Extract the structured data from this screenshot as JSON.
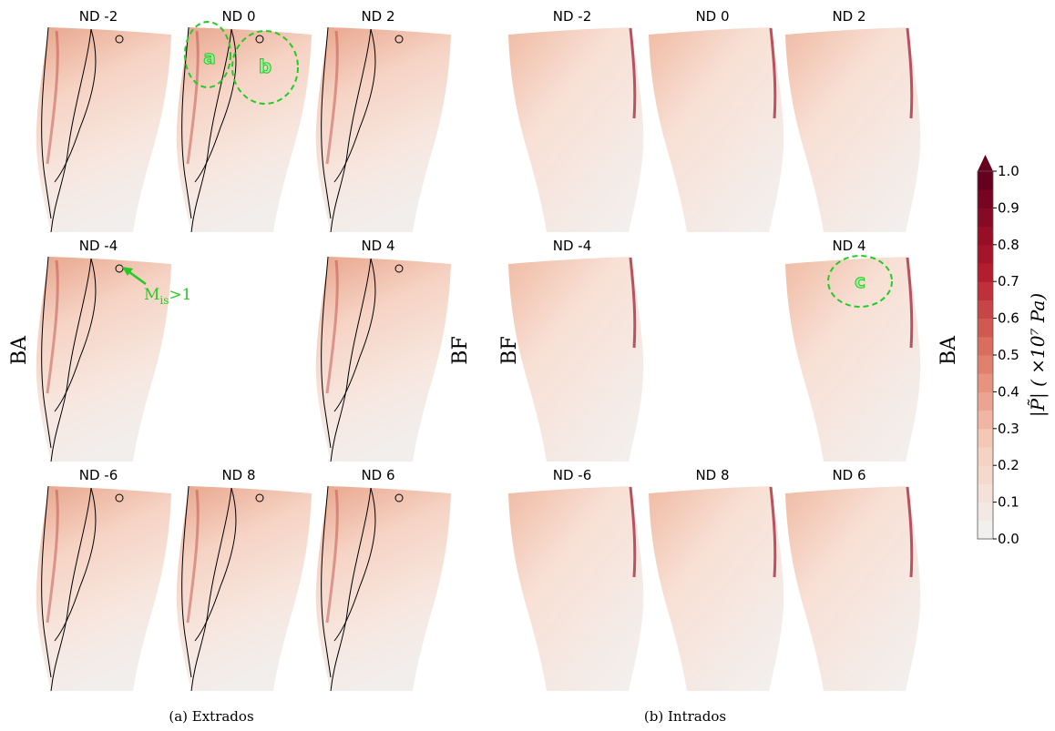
{
  "extrados": {
    "panels": [
      "ND -2",
      "ND 0",
      "ND 2",
      "ND -4",
      "ND 4",
      "ND -6",
      "ND 8",
      "ND 6"
    ],
    "caption": "(a) Extrados"
  },
  "intrados": {
    "panels": [
      "ND -2",
      "ND 0",
      "ND 2",
      "ND -4",
      "ND 4",
      "ND -6",
      "ND 8",
      "ND 6"
    ],
    "caption": "(b) Intrados"
  },
  "side_labels": [
    "BA",
    "BF",
    "BF",
    "BA"
  ],
  "annotations": {
    "regions": [
      "a",
      "b",
      "c"
    ],
    "mach": "M",
    "mach_sub": "is",
    "mach_rest": ">1"
  },
  "colorbar": {
    "ticks": [
      "0.0",
      "0.1",
      "0.2",
      "0.3",
      "0.4",
      "0.5",
      "0.6",
      "0.7",
      "0.8",
      "0.9",
      "1.0"
    ],
    "label": "|P̃| ( ×10⁷ Pa)"
  }
}
